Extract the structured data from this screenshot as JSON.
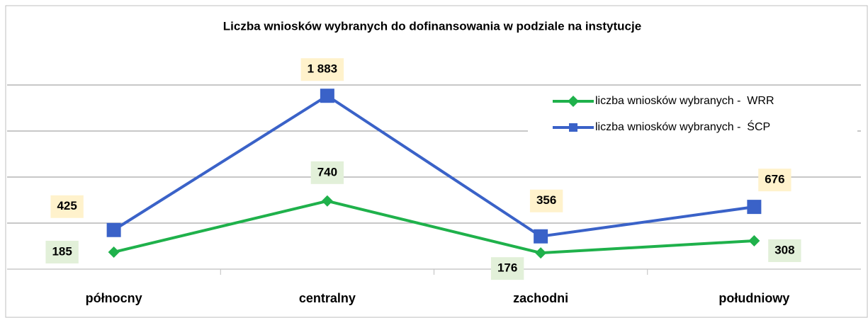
{
  "chart_data": {
    "type": "line",
    "title": "Liczba wniosków wybranych do dofinansowania w podziale na instytucje",
    "categories": [
      "północny",
      "centralny",
      "zachodni",
      "południowy"
    ],
    "series": [
      {
        "name": "liczba wniosków wybranych -  WRR",
        "color": "#1fb14b",
        "marker": "diamond",
        "values": [
          185,
          740,
          176,
          308
        ]
      },
      {
        "name": "liczba wniosków wybranych -  ŚCP",
        "color": "#3a62c8",
        "marker": "square",
        "values": [
          425,
          1883,
          356,
          676
        ],
        "value_labels": [
          "425",
          "1 883",
          "356",
          "676"
        ]
      }
    ],
    "ylim": [
      0,
      2500
    ],
    "yticks": [
      0,
      500,
      1000,
      1500,
      2000
    ],
    "grid": true,
    "legend": "upper right"
  }
}
